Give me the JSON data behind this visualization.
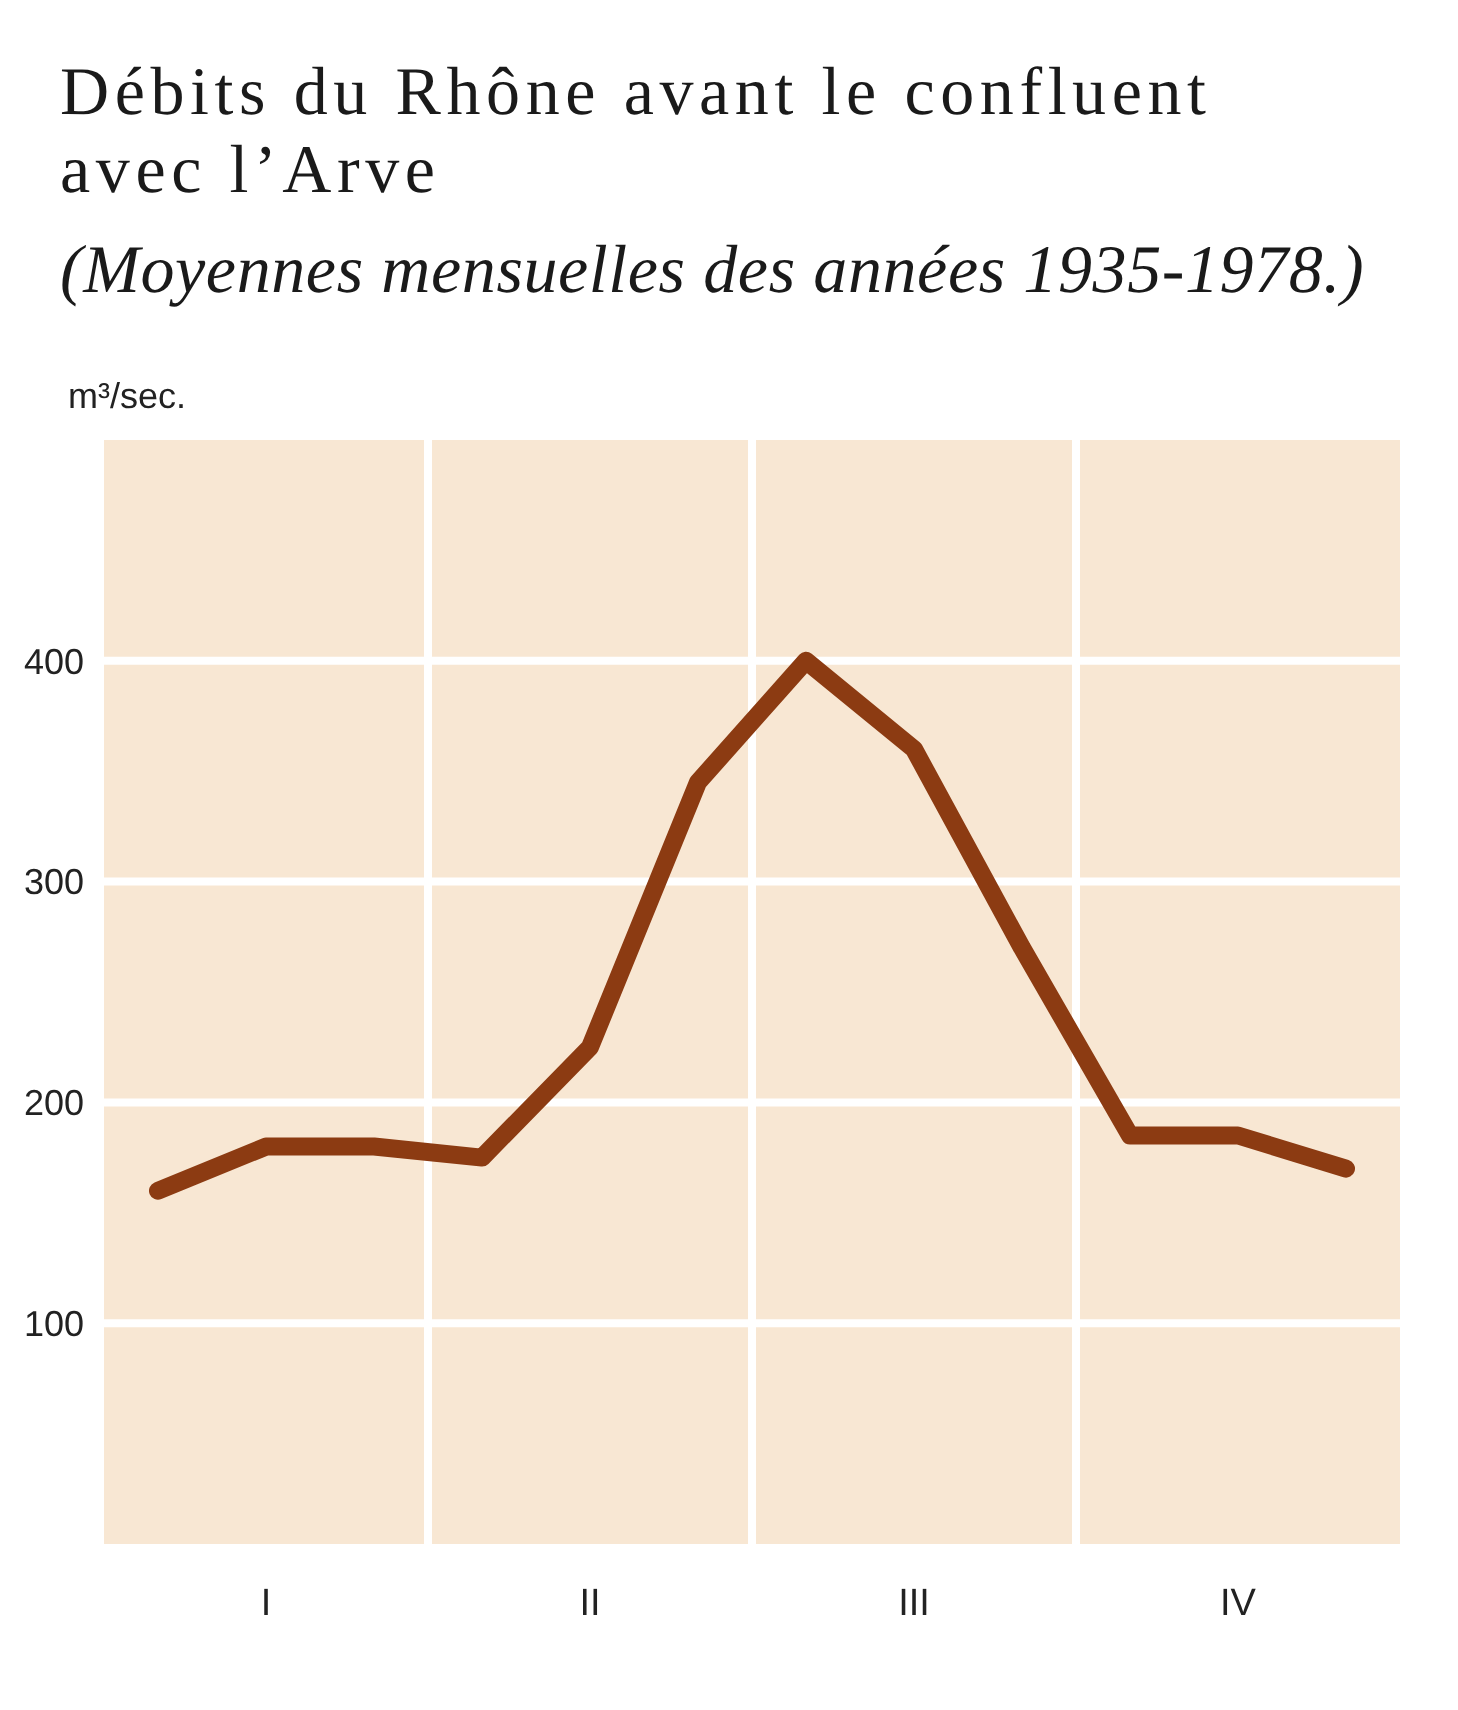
{
  "chart_data": {
    "type": "line",
    "title": "Débits du Rhône avant le confluent avec l’Arve",
    "subtitle": "(Moyennes mensuelles des années 1935-1978.)",
    "ylabel": "m³/sec.",
    "categories": [
      null,
      "I",
      null,
      null,
      "II",
      null,
      null,
      "III",
      null,
      null,
      "IV",
      null
    ],
    "values": [
      160,
      180,
      180,
      175,
      225,
      345,
      400,
      360,
      270,
      185,
      185,
      170
    ],
    "color": "#8c3b12",
    "ylim": [
      0,
      500
    ],
    "yticks": [
      100,
      200,
      300,
      400
    ],
    "grid": true,
    "marker": "none"
  }
}
